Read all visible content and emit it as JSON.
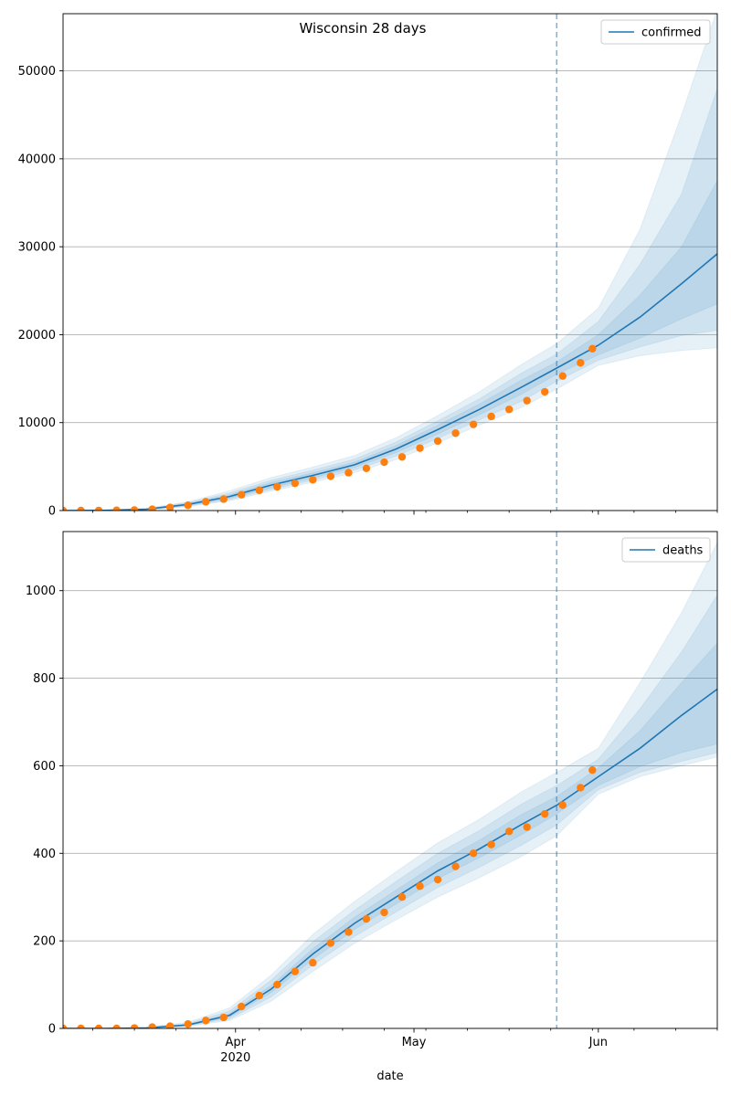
{
  "figure": {
    "suptitle": "Wisconsin 28 days",
    "xlabel": "date",
    "x_ticks": [
      {
        "date": "2020-04-01",
        "label": "Apr",
        "sublabel": "2020"
      },
      {
        "date": "2020-05-01",
        "label": "May",
        "sublabel": ""
      },
      {
        "date": "2020-06-01",
        "label": "Jun",
        "sublabel": ""
      }
    ],
    "xlim": [
      "2020-03-03",
      "2020-06-21"
    ],
    "forecast_start": "2020-05-25",
    "colors": {
      "model": "#1f77b4",
      "observed": "#ff7f0e",
      "grid": "#b0b0b0",
      "band": "#1f77b4"
    }
  },
  "chart_data": [
    {
      "type": "line",
      "legend": "confirmed",
      "legend_loc": "upper right",
      "ylim": [
        0,
        56500
      ],
      "y_ticks": [
        0,
        10000,
        20000,
        30000,
        40000,
        50000
      ],
      "grid": "horizontal",
      "x": [
        "2020-03-03",
        "2020-03-10",
        "2020-03-17",
        "2020-03-24",
        "2020-03-31",
        "2020-04-07",
        "2020-04-14",
        "2020-04-21",
        "2020-04-28",
        "2020-05-05",
        "2020-05-12",
        "2020-05-19",
        "2020-05-25",
        "2020-06-01",
        "2020-06-08",
        "2020-06-15",
        "2020-06-21"
      ],
      "median": [
        0,
        20,
        150,
        700,
        1600,
        2900,
        4000,
        5200,
        7000,
        9200,
        11500,
        14000,
        16200,
        18800,
        22000,
        25800,
        29200
      ],
      "band_50": [
        [
          0,
          0
        ],
        [
          15,
          25
        ],
        [
          120,
          180
        ],
        [
          600,
          800
        ],
        [
          1400,
          1800
        ],
        [
          2600,
          3200
        ],
        [
          3700,
          4300
        ],
        [
          4900,
          5500
        ],
        [
          6600,
          7400
        ],
        [
          8700,
          9700
        ],
        [
          10900,
          12100
        ],
        [
          13200,
          14800
        ],
        [
          15500,
          16900
        ],
        [
          17700,
          20000
        ],
        [
          19600,
          24500
        ],
        [
          21800,
          30000
        ],
        [
          23500,
          37500
        ]
      ],
      "band_80": [
        [
          0,
          0
        ],
        [
          10,
          30
        ],
        [
          100,
          210
        ],
        [
          520,
          900
        ],
        [
          1250,
          2000
        ],
        [
          2400,
          3450
        ],
        [
          3450,
          4600
        ],
        [
          4600,
          5850
        ],
        [
          6200,
          7800
        ],
        [
          8200,
          10200
        ],
        [
          10300,
          12700
        ],
        [
          12400,
          15600
        ],
        [
          14700,
          17800
        ],
        [
          17100,
          21500
        ],
        [
          18600,
          28000
        ],
        [
          19900,
          36000
        ],
        [
          20500,
          48000
        ]
      ],
      "band_95": [
        [
          0,
          0
        ],
        [
          5,
          40
        ],
        [
          80,
          250
        ],
        [
          450,
          1000
        ],
        [
          1100,
          2250
        ],
        [
          2200,
          3750
        ],
        [
          3200,
          4950
        ],
        [
          4300,
          6250
        ],
        [
          5800,
          8300
        ],
        [
          7700,
          10800
        ],
        [
          9700,
          13500
        ],
        [
          11700,
          16600
        ],
        [
          13800,
          19000
        ],
        [
          16500,
          23000
        ],
        [
          17600,
          32000
        ],
        [
          18200,
          45000
        ],
        [
          18500,
          57000
        ]
      ],
      "observed_x": [
        "2020-03-03",
        "2020-03-06",
        "2020-03-09",
        "2020-03-12",
        "2020-03-15",
        "2020-03-18",
        "2020-03-21",
        "2020-03-24",
        "2020-03-27",
        "2020-03-30",
        "2020-04-02",
        "2020-04-05",
        "2020-04-08",
        "2020-04-11",
        "2020-04-14",
        "2020-04-17",
        "2020-04-20",
        "2020-04-23",
        "2020-04-26",
        "2020-04-29",
        "2020-05-02",
        "2020-05-05",
        "2020-05-08",
        "2020-05-11",
        "2020-05-14",
        "2020-05-17",
        "2020-05-20",
        "2020-05-23",
        "2020-05-26",
        "2020-05-29",
        "2020-05-31"
      ],
      "observed_y": [
        0,
        2,
        10,
        30,
        60,
        150,
        350,
        600,
        1000,
        1300,
        1800,
        2300,
        2700,
        3100,
        3500,
        3900,
        4300,
        4800,
        5500,
        6100,
        7100,
        7900,
        8800,
        9800,
        10700,
        11500,
        12500,
        13500,
        15300,
        16800,
        18400
      ]
    },
    {
      "type": "line",
      "legend": "deaths",
      "legend_loc": "upper right",
      "ylim": [
        0,
        1135
      ],
      "y_ticks": [
        0,
        200,
        400,
        600,
        800,
        1000
      ],
      "grid": "horizontal",
      "x": [
        "2020-03-03",
        "2020-03-10",
        "2020-03-17",
        "2020-03-24",
        "2020-03-31",
        "2020-04-07",
        "2020-04-14",
        "2020-04-21",
        "2020-04-28",
        "2020-05-05",
        "2020-05-12",
        "2020-05-19",
        "2020-05-25",
        "2020-06-01",
        "2020-06-08",
        "2020-06-15",
        "2020-06-21"
      ],
      "median": [
        0,
        0,
        1,
        8,
        30,
        90,
        170,
        240,
        300,
        360,
        410,
        465,
        510,
        575,
        640,
        715,
        775
      ],
      "band_50": [
        [
          0,
          0
        ],
        [
          0,
          0
        ],
        [
          1,
          1
        ],
        [
          7,
          9
        ],
        [
          26,
          34
        ],
        [
          82,
          98
        ],
        [
          158,
          182
        ],
        [
          226,
          254
        ],
        [
          284,
          316
        ],
        [
          342,
          378
        ],
        [
          390,
          430
        ],
        [
          442,
          488
        ],
        [
          490,
          530
        ],
        [
          555,
          595
        ],
        [
          598,
          680
        ],
        [
          630,
          790
        ],
        [
          650,
          880
        ]
      ],
      "band_80": [
        [
          0,
          0
        ],
        [
          0,
          0
        ],
        [
          0,
          2
        ],
        [
          6,
          11
        ],
        [
          22,
          40
        ],
        [
          72,
          110
        ],
        [
          145,
          198
        ],
        [
          210,
          270
        ],
        [
          266,
          336
        ],
        [
          322,
          400
        ],
        [
          368,
          452
        ],
        [
          418,
          512
        ],
        [
          465,
          555
        ],
        [
          545,
          615
        ],
        [
          585,
          730
        ],
        [
          610,
          860
        ],
        [
          630,
          990
        ]
      ],
      "band_95": [
        [
          0,
          0
        ],
        [
          0,
          0
        ],
        [
          0,
          3
        ],
        [
          5,
          14
        ],
        [
          18,
          47
        ],
        [
          62,
          122
        ],
        [
          130,
          215
        ],
        [
          194,
          290
        ],
        [
          248,
          358
        ],
        [
          300,
          424
        ],
        [
          344,
          478
        ],
        [
          392,
          540
        ],
        [
          440,
          585
        ],
        [
          535,
          640
        ],
        [
          575,
          790
        ],
        [
          600,
          950
        ],
        [
          620,
          1110
        ]
      ],
      "observed_x": [
        "2020-03-03",
        "2020-03-06",
        "2020-03-09",
        "2020-03-12",
        "2020-03-15",
        "2020-03-18",
        "2020-03-21",
        "2020-03-24",
        "2020-03-27",
        "2020-03-30",
        "2020-04-02",
        "2020-04-05",
        "2020-04-08",
        "2020-04-11",
        "2020-04-14",
        "2020-04-17",
        "2020-04-20",
        "2020-04-23",
        "2020-04-26",
        "2020-04-29",
        "2020-05-02",
        "2020-05-05",
        "2020-05-08",
        "2020-05-11",
        "2020-05-14",
        "2020-05-17",
        "2020-05-20",
        "2020-05-23",
        "2020-05-26",
        "2020-05-29",
        "2020-05-31"
      ],
      "observed_y": [
        0,
        0,
        0,
        0,
        1,
        3,
        5,
        10,
        18,
        25,
        50,
        75,
        100,
        130,
        150,
        195,
        220,
        250,
        265,
        300,
        325,
        340,
        370,
        400,
        420,
        450,
        460,
        490,
        510,
        550,
        590
      ]
    }
  ]
}
